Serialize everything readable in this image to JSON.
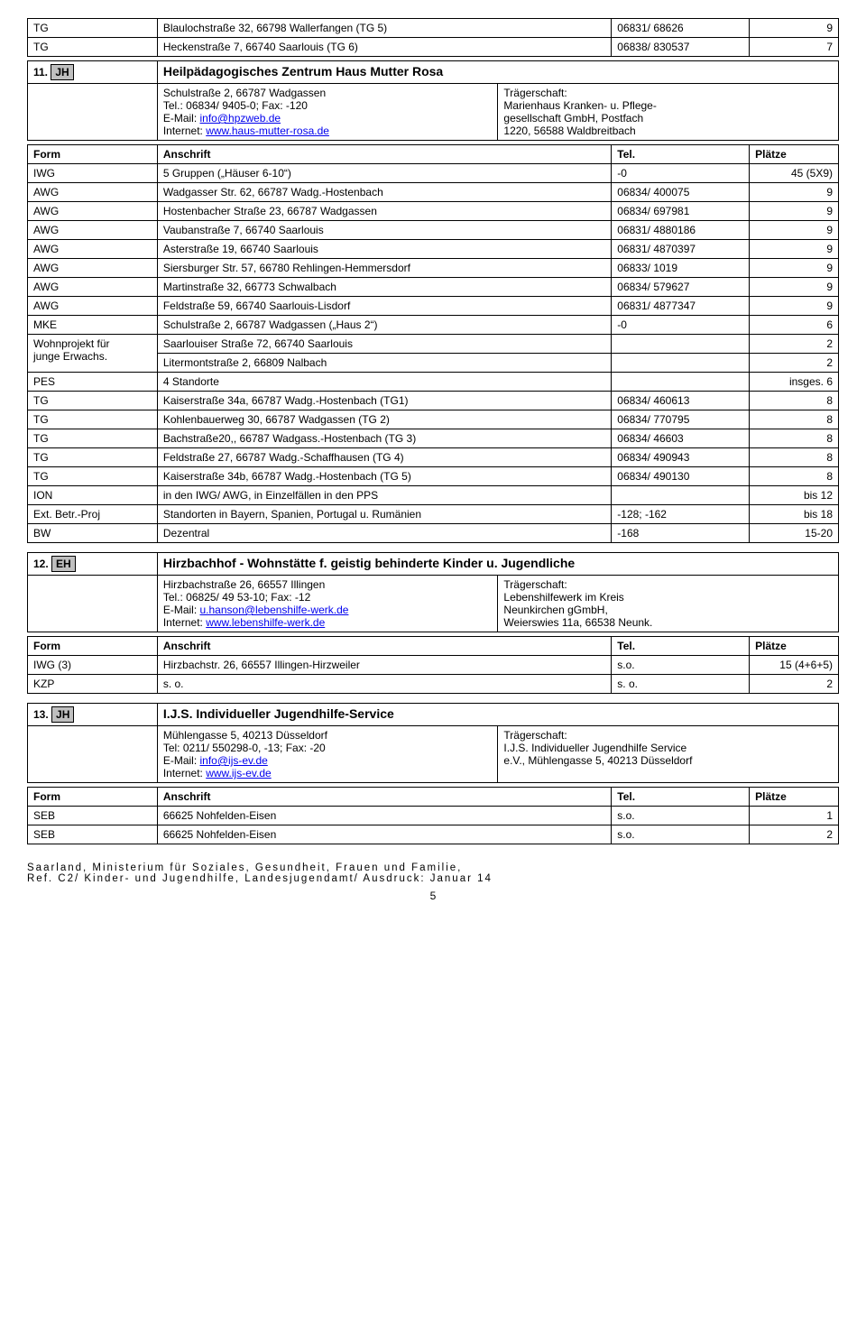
{
  "top_rows": [
    {
      "form": "TG",
      "addr": "Blaulochstraße 32, 66798 Wallerfangen (TG 5)",
      "tel": "06831/ 68626",
      "pl": "9"
    },
    {
      "form": "TG",
      "addr": "Heckenstraße 7, 66740 Saarlouis (TG 6)",
      "tel": "06838/ 830537",
      "pl": "7"
    }
  ],
  "s11": {
    "num": "11.",
    "badge": "JH",
    "title": "Heilpädagogisches Zentrum Haus Mutter Rosa",
    "left_lines": [
      "Schulstraße 2, 66787 Wadgassen",
      "Tel.: 06834/ 9405-0; Fax: -120"
    ],
    "email_label": "E-Mail: ",
    "email_link": "info@hpzweb.de",
    "internet_label": "Internet: ",
    "internet_link": "www.haus-mutter-rosa.de",
    "right_lines": [
      "Trägerschaft:",
      "Marienhaus Kranken- u. Pflege-",
      "gesellschaft GmbH, Postfach",
      "1220, 56588 Waldbreitbach"
    ]
  },
  "header": {
    "form": "Form",
    "addr": "Anschrift",
    "tel": "Tel.",
    "pl": "Plätze"
  },
  "s11_rows": [
    {
      "form": "IWG",
      "addr": "5 Gruppen („Häuser 6-10“)",
      "tel": "-0",
      "pl": "45 (5X9)"
    },
    {
      "form": "AWG",
      "addr": "Wadgasser Str. 62, 66787 Wadg.-Hostenbach",
      "tel": "06834/ 400075",
      "pl": "9"
    },
    {
      "form": "AWG",
      "addr": "Hostenbacher Straße 23, 66787 Wadgassen",
      "tel": "06834/ 697981",
      "pl": "9"
    },
    {
      "form": "AWG",
      "addr": "Vaubanstraße 7, 66740 Saarlouis",
      "tel": "06831/ 4880186",
      "pl": "9"
    },
    {
      "form": "AWG",
      "addr": "Asterstraße 19, 66740 Saarlouis",
      "tel": "06831/ 4870397",
      "pl": "9"
    },
    {
      "form": "AWG",
      "addr": "Siersburger Str. 57, 66780 Rehlingen-Hemmersdorf",
      "tel": "06833/ 1019",
      "pl": "9"
    },
    {
      "form": "AWG",
      "addr": "Martinstraße 32, 66773 Schwalbach",
      "tel": "06834/ 579627",
      "pl": "9"
    },
    {
      "form": "AWG",
      "addr": "Feldstraße 59, 66740 Saarlouis-Lisdorf",
      "tel": "06831/ 4877347",
      "pl": "9"
    },
    {
      "form": "MKE",
      "addr": "Schulstraße 2, 66787 Wadgassen („Haus 2“)",
      "tel": "-0",
      "pl": "6"
    }
  ],
  "s11_wp": {
    "form_lines": [
      "Wohnprojekt für",
      "junge Erwachs."
    ],
    "rows": [
      {
        "addr": "Saarlouiser Straße 72, 66740 Saarlouis",
        "tel": "",
        "pl": "2"
      },
      {
        "addr": "Litermontstraße 2, 66809 Nalbach",
        "tel": "",
        "pl": "2"
      }
    ]
  },
  "s11_rows2": [
    {
      "form": "PES",
      "addr": "4 Standorte",
      "tel": "",
      "pl": "insges. 6"
    },
    {
      "form": "TG",
      "addr": "Kaiserstraße 34a, 66787 Wadg.-Hostenbach (TG1)",
      "tel": "06834/ 460613",
      "pl": "8"
    },
    {
      "form": "TG",
      "addr": "Kohlenbauerweg 30, 66787 Wadgassen (TG 2)",
      "tel": "06834/ 770795",
      "pl": "8"
    },
    {
      "form": "TG",
      "addr": "Bachstraße20,, 66787 Wadgass.-Hostenbach (TG 3)",
      "tel": "06834/ 46603",
      "pl": "8"
    },
    {
      "form": "TG",
      "addr": "Feldstraße 27, 66787 Wadg.-Schaffhausen (TG 4)",
      "tel": "06834/ 490943",
      "pl": "8"
    },
    {
      "form": "TG",
      "addr": "Kaiserstraße 34b, 66787 Wadg.-Hostenbach (TG 5)",
      "tel": "06834/ 490130",
      "pl": "8"
    },
    {
      "form": "ION",
      "addr": "in den IWG/ AWG, in Einzelfällen in den PPS",
      "tel": "",
      "pl": "bis 12"
    },
    {
      "form": "Ext. Betr.-Proj",
      "addr": "Standorten in Bayern, Spanien, Portugal u. Rumänien",
      "tel": "-128;  -162",
      "pl": "bis 18"
    },
    {
      "form": "BW",
      "addr": "Dezentral",
      "tel": "-168",
      "pl": "15-20"
    }
  ],
  "s12": {
    "num": "12.",
    "badge": "EH",
    "title": "Hirzbachhof - Wohnstätte f. geistig behinderte Kinder u. Jugendliche",
    "left_lines": [
      "Hirzbachstraße 26, 66557 Illingen",
      "Tel.: 06825/ 49 53-10; Fax: -12"
    ],
    "email_label": "E-Mail: ",
    "email_link": "u.hanson@lebenshilfe-werk.de",
    "internet_label": "Internet: ",
    "internet_link": "www.lebenshilfe-werk.de",
    "right_lines": [
      "Trägerschaft:",
      "Lebenshilfewerk im Kreis",
      "Neunkirchen gGmbH,",
      "Weierswies 11a, 66538 Neunk."
    ]
  },
  "s12_rows": [
    {
      "form": "IWG (3)",
      "addr": "Hirzbachstr. 26, 66557 Illingen-Hirzweiler",
      "tel": "s.o.",
      "pl": "15 (4+6+5)"
    },
    {
      "form": "KZP",
      "addr": "s. o.",
      "tel": "s. o.",
      "pl": "2"
    }
  ],
  "s13": {
    "num": "13.",
    "badge": "JH",
    "title": "I.J.S. Individueller Jugendhilfe-Service",
    "left_lines": [
      "Mühlengasse 5, 40213 Düsseldorf",
      "Tel: 0211/ 550298-0, -13; Fax: -20"
    ],
    "email_label": "E-Mail: ",
    "email_link": "info@ijs-ev.de",
    "internet_label": "Internet: ",
    "internet_link": "www.ijs-ev.de",
    "right_lines": [
      "Trägerschaft:",
      "I.J.S. Individueller Jugendhilfe Service",
      "e.V., Mühlengasse 5, 40213 Düsseldorf"
    ]
  },
  "s13_rows": [
    {
      "form": "SEB",
      "addr": "66625 Nohfelden-Eisen",
      "tel": "s.o.",
      "pl": "1"
    },
    {
      "form": "SEB",
      "addr": "66625 Nohfelden-Eisen",
      "tel": "s.o.",
      "pl": "2"
    }
  ],
  "footer": {
    "line1": "Saarland, Ministerium für Soziales, Gesundheit, Frauen und Familie,",
    "line2": "Ref. C2/ Kinder- und Jugendhilfe, Landesjugendamt/ Ausdruck: Januar 14",
    "page": "5"
  }
}
